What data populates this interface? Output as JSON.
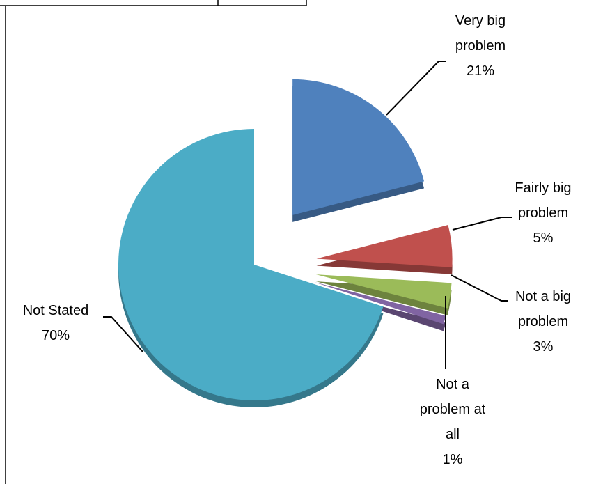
{
  "chart_data": {
    "type": "pie",
    "categories": [
      "Very big problem",
      "Fairly big problem",
      "Not a big problem",
      "Not a problem at all",
      "Not Stated"
    ],
    "values": [
      21,
      5,
      3,
      1,
      70
    ],
    "value_labels": [
      "21%",
      "5%",
      "3%",
      "1%",
      "70%"
    ],
    "colors": [
      "#4f81bd",
      "#c0504d",
      "#9bbb59",
      "#8064a2",
      "#4bacc6"
    ]
  }
}
